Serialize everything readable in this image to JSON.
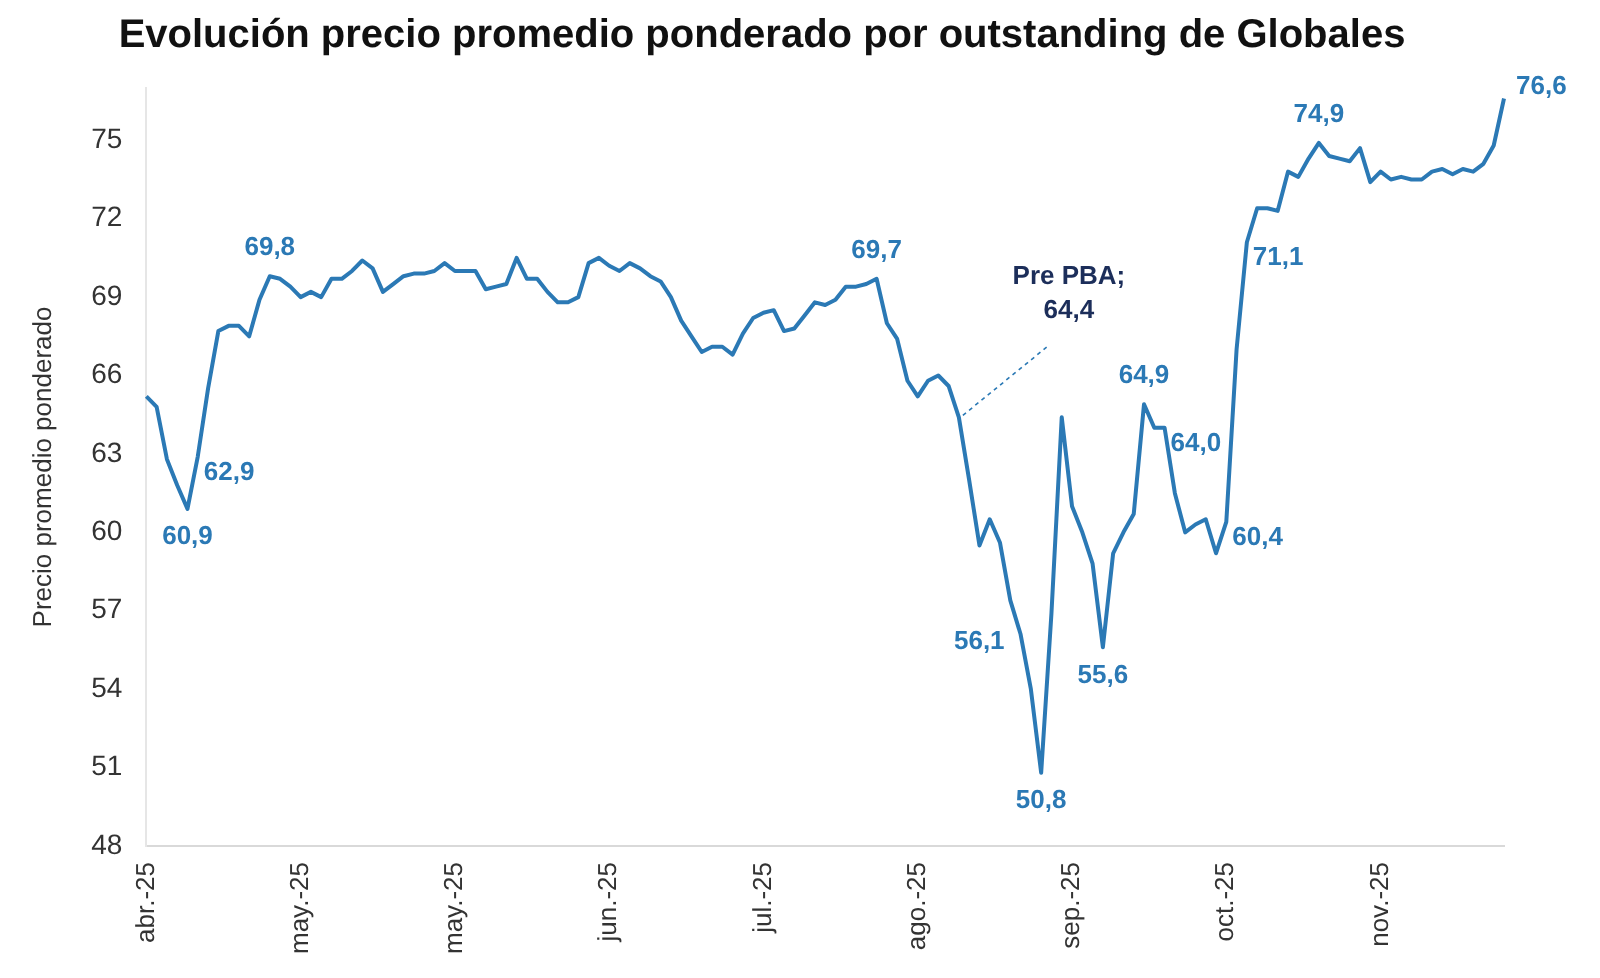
{
  "chart_data": {
    "type": "line",
    "title": "Evolución precio promedio ponderado por outstanding de Globales",
    "ylabel": "Precio promedio ponderado",
    "categories": [
      "abr.-25",
      null,
      null,
      null,
      null,
      null,
      null,
      null,
      null,
      null,
      null,
      null,
      null,
      null,
      null,
      "may.-25",
      null,
      null,
      null,
      null,
      null,
      null,
      null,
      null,
      null,
      null,
      null,
      null,
      null,
      null,
      "may.-25",
      null,
      null,
      null,
      null,
      null,
      null,
      null,
      null,
      null,
      null,
      null,
      null,
      null,
      null,
      "jun.-25",
      null,
      null,
      null,
      null,
      null,
      null,
      null,
      null,
      null,
      null,
      null,
      null,
      null,
      null,
      "jul.-25",
      null,
      null,
      null,
      null,
      null,
      null,
      null,
      null,
      null,
      null,
      null,
      null,
      null,
      null,
      "ago.-25",
      null,
      null,
      null,
      null,
      null,
      null,
      null,
      null,
      null,
      null,
      null,
      null,
      null,
      null,
      "sep.-25",
      null,
      null,
      null,
      null,
      null,
      null,
      null,
      null,
      null,
      null,
      null,
      null,
      null,
      null,
      "oct.-25",
      null,
      null,
      null,
      null,
      null,
      null,
      null,
      null,
      null,
      null,
      null,
      null,
      null,
      null,
      "nov.-25",
      null,
      null,
      null,
      null,
      null,
      null,
      null,
      null,
      null,
      null,
      null,
      null
    ],
    "series": [
      {
        "color": "#2b79b5",
        "values": [
          65.2,
          64.8,
          62.8,
          61.8,
          60.9,
          62.9,
          65.5,
          67.7,
          67.9,
          67.9,
          67.5,
          68.9,
          69.8,
          69.7,
          69.4,
          69.0,
          69.2,
          69.0,
          69.7,
          69.7,
          70.0,
          70.4,
          70.1,
          69.2,
          69.5,
          69.8,
          69.9,
          69.9,
          70.0,
          70.3,
          70.0,
          70.0,
          70.0,
          69.3,
          69.4,
          69.5,
          70.5,
          69.7,
          69.7,
          69.2,
          68.8,
          68.8,
          69.0,
          70.3,
          70.5,
          70.2,
          70.0,
          70.3,
          70.1,
          69.8,
          69.6,
          69.0,
          68.1,
          67.5,
          66.9,
          67.1,
          67.1,
          66.8,
          67.6,
          68.2,
          68.4,
          68.5,
          67.7,
          67.8,
          68.3,
          68.8,
          68.7,
          68.9,
          69.4,
          69.4,
          69.5,
          69.7,
          68.0,
          67.4,
          65.8,
          65.2,
          65.8,
          66.0,
          65.6,
          64.4,
          62.0,
          59.5,
          60.5,
          59.6,
          57.4,
          56.1,
          54.0,
          50.8,
          56.9,
          64.4,
          61.0,
          60.0,
          58.8,
          55.6,
          59.2,
          60.0,
          60.7,
          64.9,
          64.0,
          64.0,
          61.5,
          60.0,
          60.3,
          60.5,
          59.2,
          60.4,
          67.0,
          71.1,
          72.4,
          72.4,
          72.3,
          73.8,
          73.6,
          74.3,
          74.9,
          74.4,
          74.3,
          74.2,
          74.7,
          73.4,
          73.8,
          73.5,
          73.6,
          73.5,
          73.5,
          73.8,
          73.9,
          73.7,
          73.9,
          73.8,
          74.1,
          74.8,
          76.6
        ],
        "value_labels": [
          null,
          null,
          null,
          null,
          "60,9",
          "62,9",
          null,
          null,
          null,
          null,
          null,
          null,
          "69,8",
          null,
          null,
          null,
          null,
          null,
          null,
          null,
          null,
          null,
          null,
          null,
          null,
          null,
          null,
          null,
          null,
          null,
          null,
          null,
          null,
          null,
          null,
          null,
          null,
          null,
          null,
          null,
          null,
          null,
          null,
          null,
          null,
          null,
          null,
          null,
          null,
          null,
          null,
          null,
          null,
          null,
          null,
          null,
          null,
          null,
          null,
          null,
          null,
          null,
          null,
          null,
          null,
          null,
          null,
          null,
          null,
          null,
          null,
          "69,7",
          null,
          null,
          null,
          null,
          null,
          null,
          null,
          "Pre PBA; 64,4",
          null,
          null,
          null,
          null,
          null,
          "56,1",
          null,
          "50,8",
          null,
          null,
          null,
          null,
          null,
          "55,6",
          null,
          null,
          null,
          "64,9",
          null,
          "64,0",
          null,
          null,
          null,
          null,
          null,
          "60,4",
          null,
          "71,1",
          null,
          null,
          null,
          null,
          null,
          null,
          "74,9",
          null,
          null,
          null,
          null,
          null,
          null,
          null,
          null,
          null,
          null,
          null,
          null,
          null,
          null,
          null,
          null,
          null,
          "76,6"
        ]
      }
    ],
    "ylim": [
      48,
      77
    ],
    "yticks": [
      48,
      51,
      54,
      57,
      60,
      63,
      66,
      69,
      72,
      75
    ],
    "grid": false,
    "legend": false,
    "marker": "none",
    "line_style": "solid"
  }
}
